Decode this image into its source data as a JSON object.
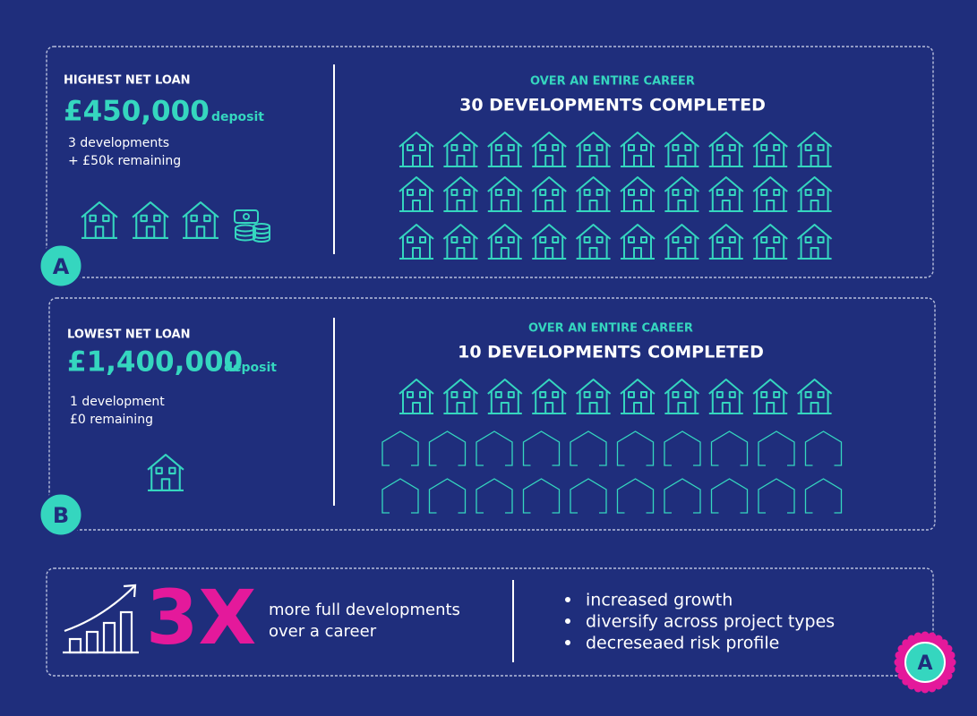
{
  "panels": [
    {
      "badge": "A",
      "label": "HIGHEST NET LOAN",
      "amount": "£450,000",
      "amount_note": "deposit",
      "details": [
        "3 developments",
        "+ £50k remaining"
      ],
      "subtitle": "OVER AN ENTIRE CAREER",
      "headline": "30 DEVELOPMENTS COMPLETED"
    },
    {
      "badge": "B",
      "label": "LOWEST NET LOAN",
      "amount": "£1,400,000",
      "amount_note": "deposit",
      "details": [
        "1 development",
        "£0 remaining"
      ],
      "subtitle": "OVER AN ENTIRE CAREER",
      "headline": "10 DEVELOPMENTS COMPLETED"
    }
  ],
  "summary": {
    "multiplier": "3X",
    "text": [
      "more full developments",
      "over a career"
    ],
    "bullets": [
      "increased growth",
      "diversify across project types",
      "decreseaed risk profile"
    ]
  },
  "corner_badge": "A"
}
